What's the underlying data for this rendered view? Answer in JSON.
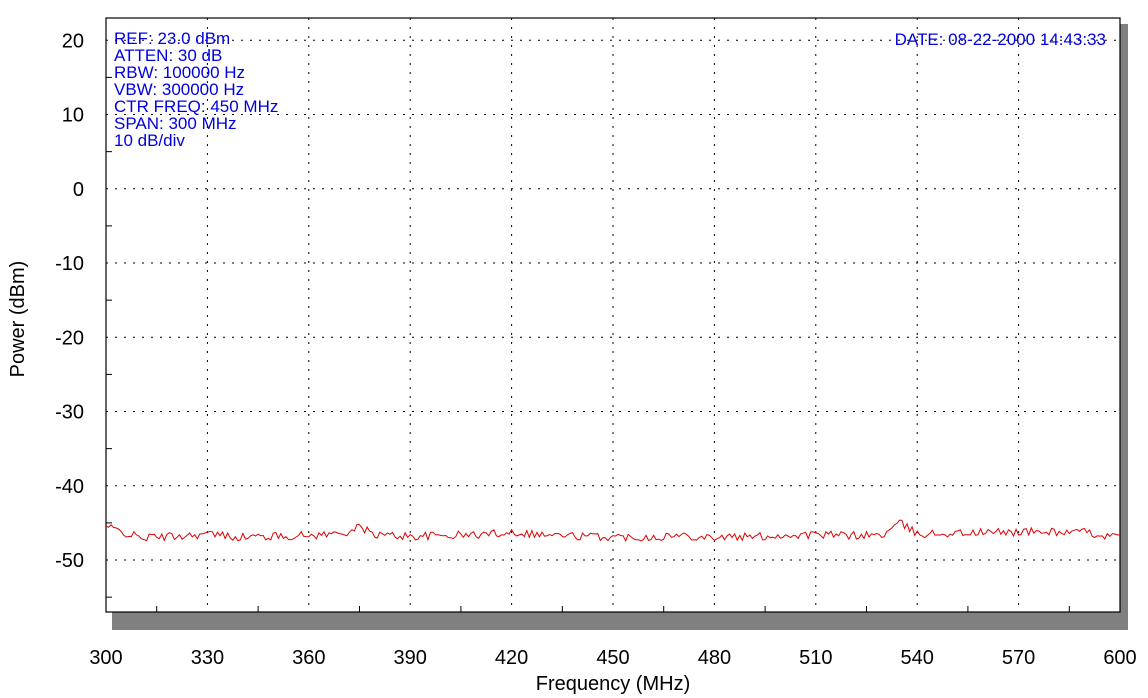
{
  "chart_data": {
    "type": "line",
    "title": "",
    "xlabel": "Frequency (MHz)",
    "ylabel": "Power (dBm)",
    "xlim": [
      300,
      600
    ],
    "ylim": [
      -57,
      23
    ],
    "x_ticks": [
      300,
      330,
      360,
      390,
      420,
      450,
      480,
      510,
      540,
      570,
      600
    ],
    "y_ticks": [
      20,
      10,
      0,
      -10,
      -20,
      -30,
      -40,
      -50
    ],
    "grid": true,
    "grid_style": "dotted",
    "trace_color": "#e00000",
    "info_color": "#0000e0",
    "info_left": [
      "REF: 23.0 dBm",
      "ATTEN:  30 dB",
      "RBW: 100000 Hz",
      "VBW:  300000 Hz",
      "CTR FREQ:  450 MHz",
      "SPAN:  300 MHz",
      "10 dB/div"
    ],
    "info_right": "DATE: 08-22-2000  14:43:33",
    "series": [
      {
        "x": [
          300,
          310,
          320,
          330,
          340,
          350,
          360,
          370,
          375,
          380,
          390,
          400,
          410,
          420,
          430,
          440,
          450,
          460,
          470,
          480,
          490,
          500,
          510,
          520,
          530,
          535,
          540,
          550,
          560,
          570,
          580,
          590,
          600
        ],
        "values": [
          -45.5,
          -47.0,
          -46.8,
          -46.5,
          -46.9,
          -46.8,
          -46.7,
          -46.4,
          -45.6,
          -46.6,
          -46.8,
          -46.7,
          -46.6,
          -46.2,
          -46.6,
          -46.8,
          -46.9,
          -46.9,
          -46.7,
          -46.9,
          -46.9,
          -46.7,
          -46.6,
          -46.7,
          -46.6,
          -45.0,
          -46.5,
          -46.4,
          -46.3,
          -46.2,
          -46.2,
          -46.3,
          -47.0
        ]
      }
    ]
  }
}
